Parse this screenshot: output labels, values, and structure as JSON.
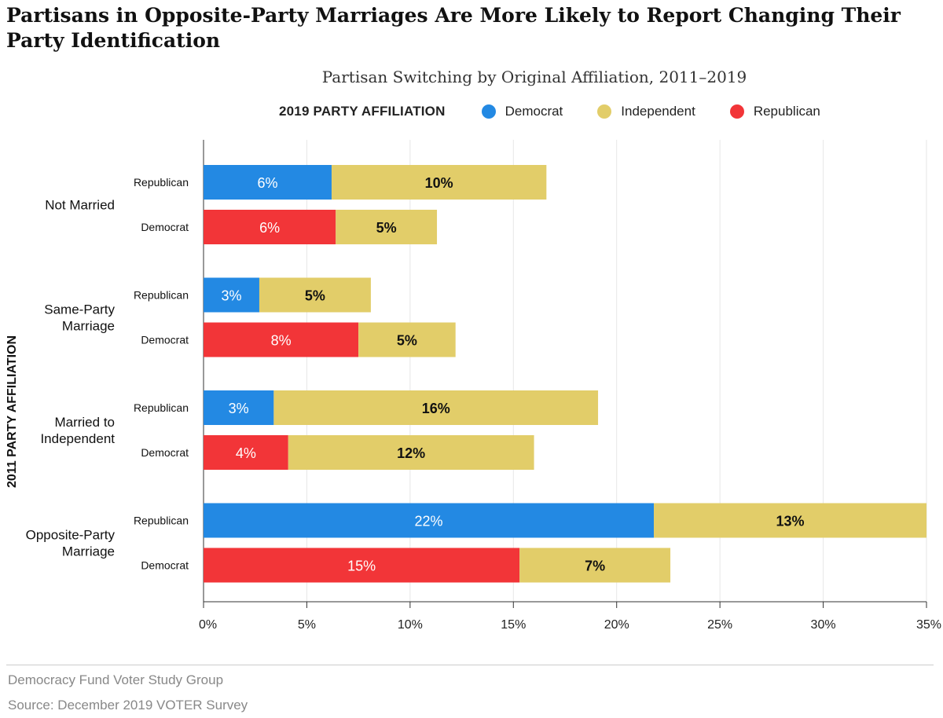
{
  "title": "Partisans in Opposite-Party Marriages Are More Likely to Report Changing Their Party Identification",
  "subtitle": "Partisan Switching by Original Affiliation, 2011–2019",
  "legend": {
    "title": "2019 PARTY AFFILIATION",
    "items": [
      {
        "label": "Democrat",
        "color": "#2389e3"
      },
      {
        "label": "Independent",
        "color": "#e2cd69"
      },
      {
        "label": "Republican",
        "color": "#f23538"
      }
    ]
  },
  "chart_data": {
    "type": "bar",
    "orientation": "horizontal",
    "stacked": true,
    "title": "Partisans in Opposite-Party Marriages Are More Likely to Report Changing Their Party Identification",
    "subtitle": "Partisan Switching by Original Affiliation, 2011–2019",
    "ylabel": "2011 PARTY AFFILIATION",
    "xlabel": "",
    "xlim": [
      0,
      35
    ],
    "x_ticks": [
      "0%",
      "5%",
      "10%",
      "15%",
      "20%",
      "25%",
      "30%",
      "35%"
    ],
    "grid": true,
    "legend_position": "top",
    "groups": [
      {
        "name": "Not Married",
        "bars": [
          {
            "label": "Republican",
            "segments": [
              {
                "series": "Democrat",
                "value": 6.2,
                "text": "6%"
              },
              {
                "series": "Independent",
                "value": 10.4,
                "text": "10%"
              }
            ]
          },
          {
            "label": "Democrat",
            "segments": [
              {
                "series": "Republican",
                "value": 6.4,
                "text": "6%"
              },
              {
                "series": "Independent",
                "value": 4.9,
                "text": "5%"
              }
            ]
          }
        ]
      },
      {
        "name": "Same-Party Marriage",
        "bars": [
          {
            "label": "Republican",
            "segments": [
              {
                "series": "Democrat",
                "value": 2.7,
                "text": "3%"
              },
              {
                "series": "Independent",
                "value": 5.4,
                "text": "5%"
              }
            ]
          },
          {
            "label": "Democrat",
            "segments": [
              {
                "series": "Republican",
                "value": 7.5,
                "text": "8%"
              },
              {
                "series": "Independent",
                "value": 4.7,
                "text": "5%"
              }
            ]
          }
        ]
      },
      {
        "name": "Married to Independent",
        "bars": [
          {
            "label": "Republican",
            "segments": [
              {
                "series": "Democrat",
                "value": 3.4,
                "text": "3%"
              },
              {
                "series": "Independent",
                "value": 15.7,
                "text": "16%"
              }
            ]
          },
          {
            "label": "Democrat",
            "segments": [
              {
                "series": "Republican",
                "value": 4.1,
                "text": "4%"
              },
              {
                "series": "Independent",
                "value": 11.9,
                "text": "12%"
              }
            ]
          }
        ]
      },
      {
        "name": "Opposite-Party Marriage",
        "bars": [
          {
            "label": "Republican",
            "segments": [
              {
                "series": "Democrat",
                "value": 21.8,
                "text": "22%"
              },
              {
                "series": "Independent",
                "value": 13.2,
                "text": "13%"
              }
            ]
          },
          {
            "label": "Democrat",
            "segments": [
              {
                "series": "Republican",
                "value": 15.3,
                "text": "15%"
              },
              {
                "series": "Independent",
                "value": 7.3,
                "text": "7%"
              }
            ]
          }
        ]
      }
    ]
  },
  "footer": {
    "line1": "Democracy Fund Voter Study Group",
    "line2": "Source: December 2019 VOTER Survey"
  }
}
